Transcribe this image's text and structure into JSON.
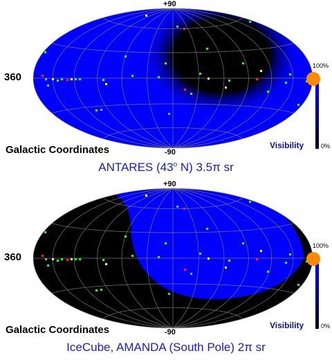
{
  "panels": [
    {
      "lat_top": "+90",
      "lat_bottom": "-90",
      "lon_label": "360",
      "coords_label": "Galactic Coordinates",
      "visibility_label": "Visibility",
      "scale_max": "100%",
      "scale_min": "0%",
      "caption": {
        "pre": "ANTARES (43",
        "sup": "o",
        "post": " N) 3.5π sr"
      }
    },
    {
      "lat_top": "+90",
      "lat_bottom": "-90",
      "lon_label": "360",
      "coords_label": "Galactic Coordinates",
      "visibility_label": "Visibility",
      "scale_max": "100%",
      "scale_min": "0%",
      "caption": {
        "pre": "IceCube, AMANDA (South Pole) 2π sr",
        "sup": "",
        "post": ""
      }
    }
  ],
  "colors": {
    "visible": "#0000ff",
    "invisible": "#000000",
    "sun_marker": "#ff8a00",
    "caption": "#1a1ac8",
    "source_green": "#33ee33",
    "source_red": "#ff2222",
    "source_yellow": "#ffff44"
  }
}
